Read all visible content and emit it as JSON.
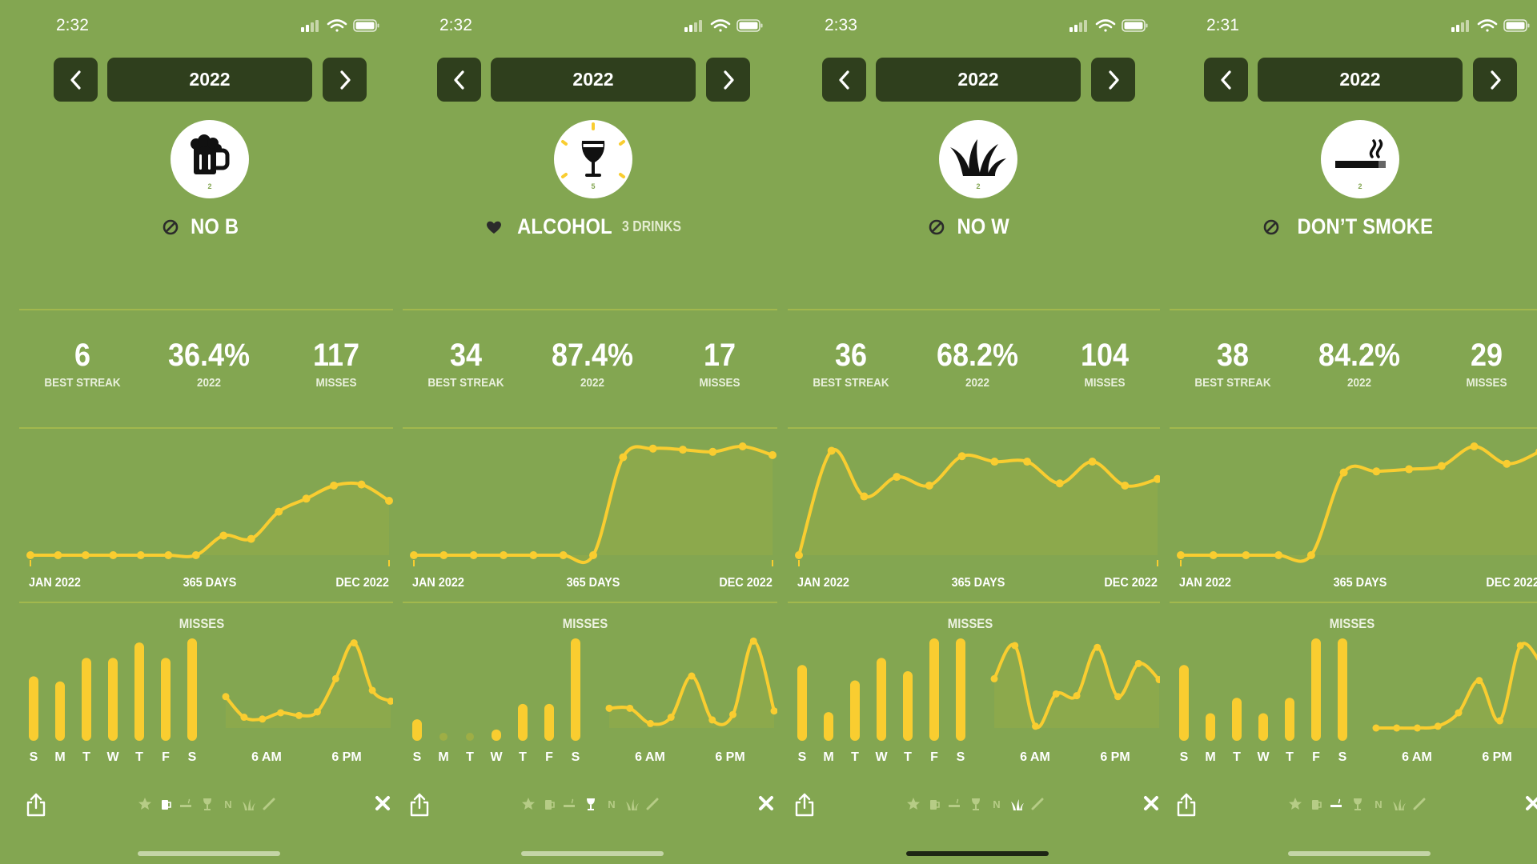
{
  "colors": {
    "background": "#83a651",
    "accent": "#f9cd30",
    "pill": "#2f3f1d",
    "divider": "#a2b84d"
  },
  "screens": [
    {
      "status_time": "2:32",
      "year": "2022",
      "habit_icon": "beer-mug-icon",
      "habit_count": "2",
      "habit_type": "avoid",
      "habit_title": "NO B",
      "habit_subtitle": "",
      "stats": [
        {
          "value": "6",
          "label": "BEST STREAK"
        },
        {
          "value": "36.4%",
          "label": "2022"
        },
        {
          "value": "117",
          "label": "MISSES"
        }
      ],
      "trend_labels": {
        "start": "JAN 2022",
        "middle": "365 DAYS",
        "end": "DEC 2022"
      },
      "trend_values": [
        0,
        0,
        0,
        0,
        0,
        0,
        0,
        0.18,
        0.15,
        0.4,
        0.52,
        0.64,
        0.65,
        0.5
      ],
      "misses_title": "MISSES",
      "weekday_labels": [
        "S",
        "M",
        "T",
        "W",
        "T",
        "F",
        "S"
      ],
      "weekday_values": [
        0.63,
        0.58,
        0.81,
        0.81,
        0.96,
        0.81,
        1.0
      ],
      "hour_labels": [
        "6 AM",
        "6 PM"
      ],
      "hour_values": [
        0.35,
        0.12,
        0.1,
        0.17,
        0.14,
        0.18,
        0.55,
        0.95,
        0.42,
        0.3
      ],
      "strip_active": 1,
      "home_dark": false
    },
    {
      "status_time": "2:32",
      "year": "2022",
      "habit_icon": "wine-glass-icon",
      "habit_count": "5",
      "habit_type": "limit",
      "habit_title": "ALCOHOL",
      "habit_subtitle": "3 DRINKS",
      "stats": [
        {
          "value": "34",
          "label": "BEST STREAK"
        },
        {
          "value": "87.4%",
          "label": "2022"
        },
        {
          "value": "17",
          "label": "MISSES"
        }
      ],
      "trend_labels": {
        "start": "JAN 2022",
        "middle": "365 DAYS",
        "end": "DEC 2022"
      },
      "trend_values": [
        0,
        0,
        0,
        0,
        0,
        0,
        0,
        0.9,
        0.98,
        0.97,
        0.95,
        1.0,
        0.92
      ],
      "misses_title": "MISSES",
      "weekday_labels": [
        "S",
        "M",
        "T",
        "W",
        "T",
        "F",
        "S"
      ],
      "weekday_values": [
        0.21,
        0.06,
        0.06,
        0.11,
        0.36,
        0.36,
        1.0
      ],
      "hour_labels": [
        "6 AM",
        "6 PM"
      ],
      "hour_values": [
        0.22,
        0.22,
        0.05,
        0.12,
        0.58,
        0.09,
        0.15,
        0.97,
        0.19
      ],
      "strip_active": 3,
      "home_dark": false
    },
    {
      "status_time": "2:33",
      "year": "2022",
      "habit_icon": "grass-icon",
      "habit_count": "2",
      "habit_type": "avoid",
      "habit_title": "NO W",
      "habit_subtitle": "",
      "stats": [
        {
          "value": "36",
          "label": "BEST STREAK"
        },
        {
          "value": "68.2%",
          "label": "2022"
        },
        {
          "value": "104",
          "label": "MISSES"
        }
      ],
      "trend_labels": {
        "start": "JAN 2022",
        "middle": "365 DAYS",
        "end": "DEC 2022"
      },
      "trend_values": [
        0,
        0.96,
        0.54,
        0.72,
        0.64,
        0.91,
        0.86,
        0.86,
        0.66,
        0.86,
        0.64,
        0.7
      ],
      "misses_title": "MISSES",
      "weekday_labels": [
        "S",
        "M",
        "T",
        "W",
        "T",
        "F",
        "S"
      ],
      "weekday_values": [
        0.74,
        0.28,
        0.59,
        0.81,
        0.68,
        1.0,
        1.0
      ],
      "hour_labels": [
        "6 AM",
        "6 PM"
      ],
      "hour_values": [
        0.55,
        0.92,
        0.02,
        0.38,
        0.36,
        0.9,
        0.35,
        0.72,
        0.54
      ],
      "strip_active": 5,
      "home_dark": true
    },
    {
      "status_time": "2:31",
      "year": "2022",
      "habit_icon": "cigarette-icon",
      "habit_count": "2",
      "habit_type": "avoid",
      "habit_title": "DON’T SMOKE",
      "habit_subtitle": "",
      "stats": [
        {
          "value": "38",
          "label": "BEST STREAK"
        },
        {
          "value": "84.2%",
          "label": "2022"
        },
        {
          "value": "29",
          "label": "MISSES"
        }
      ],
      "trend_labels": {
        "start": "JAN 2022",
        "middle": "365 DAYS",
        "end": "DEC 2022"
      },
      "trend_values": [
        0,
        0,
        0,
        0,
        0,
        0.76,
        0.77,
        0.79,
        0.82,
        1.0,
        0.84,
        0.95
      ],
      "misses_title": "MISSES",
      "weekday_labels": [
        "S",
        "M",
        "T",
        "W",
        "T",
        "F",
        "S"
      ],
      "weekday_values": [
        0.74,
        0.27,
        0.42,
        0.27,
        0.42,
        1.0,
        1.0
      ],
      "hour_labels": [
        "6 AM",
        "6 PM"
      ],
      "hour_values": [
        0,
        0,
        0,
        0.02,
        0.17,
        0.53,
        0.08,
        0.92,
        0.72
      ],
      "strip_active": 2,
      "home_dark": false
    }
  ],
  "habit_strip": [
    "star-icon",
    "beer-mug-icon",
    "cigarette-icon",
    "wine-glass-icon",
    "n-letter-icon",
    "grass-icon",
    "cigar-icon"
  ],
  "habit_strip_letter": "N"
}
